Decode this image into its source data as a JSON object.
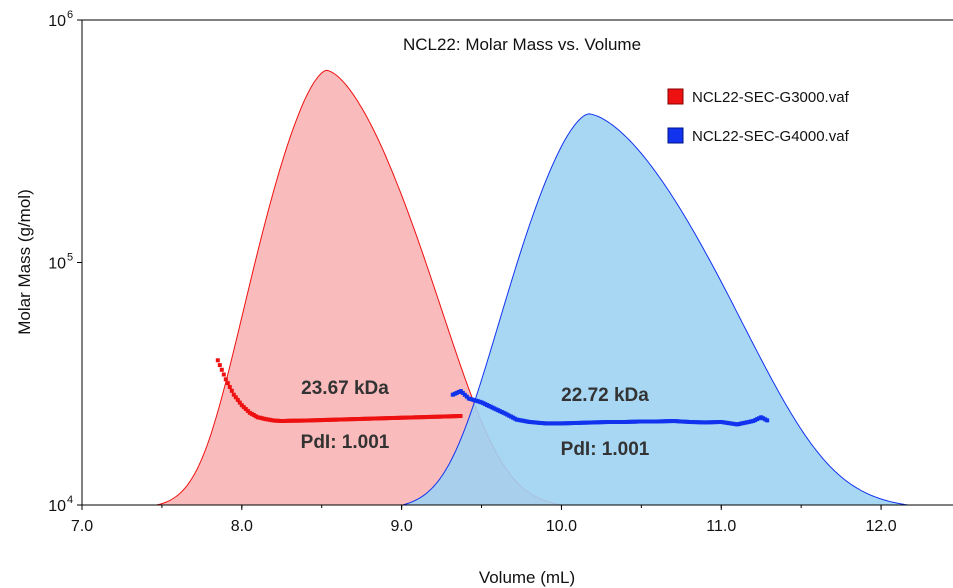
{
  "chart_data": {
    "type": "area",
    "title": "NCL22: Molar Mass vs. Volume",
    "xlabel": "Volume (mL)",
    "ylabel": "Molar Mass (g/mol)",
    "xlim": [
      7.0,
      12.45
    ],
    "ylim": [
      10000,
      1000000
    ],
    "yscale": "log",
    "x_ticks": [
      "7.0",
      "8.0",
      "9.0",
      "10.0",
      "11.0",
      "12.0"
    ],
    "y_ticks": [
      {
        "base": "10",
        "exp": "4"
      },
      {
        "base": "10",
        "exp": "5"
      },
      {
        "base": "10",
        "exp": "6"
      }
    ],
    "legend_position": "top-right",
    "series": [
      {
        "name": "NCL22-SEC-G3000.vaf",
        "color": "#ee1111",
        "fill": "#f9b7b7",
        "peak": {
          "center": 8.53,
          "left_width": 0.36,
          "right_width": 0.5,
          "height": 620000,
          "baseline": 9700
        },
        "mass_points": {
          "x": [
            7.85,
            7.9,
            7.95,
            8.0,
            8.05,
            8.1,
            8.15,
            8.2,
            8.25,
            8.3,
            8.4,
            8.5,
            8.6,
            8.7,
            8.8,
            8.9,
            9.0,
            9.1,
            9.2,
            9.3,
            9.38
          ],
          "y": [
            39500,
            33000,
            28500,
            25800,
            24000,
            23000,
            22600,
            22300,
            22200,
            22250,
            22300,
            22400,
            22500,
            22600,
            22700,
            22800,
            22900,
            23000,
            23100,
            23200,
            23300
          ]
        },
        "annotation": {
          "mass": "23.67 kDa",
          "pdi": "PdI: 1.001"
        }
      },
      {
        "name": "NCL22-SEC-G4000.vaf",
        "color": "#1133ee",
        "fill": "#9fd3f3",
        "peak": {
          "center": 10.17,
          "left_width": 0.42,
          "right_width": 0.72,
          "height": 410000,
          "baseline": 9600
        },
        "mass_points": {
          "x": [
            9.32,
            9.37,
            9.42,
            9.5,
            9.58,
            9.65,
            9.72,
            9.8,
            9.9,
            10.0,
            10.1,
            10.2,
            10.3,
            10.4,
            10.5,
            10.6,
            10.7,
            10.8,
            10.9,
            11.0,
            11.1,
            11.2,
            11.25,
            11.3
          ],
          "y": [
            28500,
            29500,
            27500,
            26500,
            25000,
            23800,
            22500,
            22000,
            21700,
            21700,
            21800,
            21900,
            22000,
            22000,
            22100,
            22100,
            22200,
            22000,
            21900,
            22000,
            21500,
            22200,
            23000,
            22100
          ]
        },
        "annotation": {
          "mass": "22.72 kDa",
          "pdi": "PdI: 1.001"
        }
      }
    ]
  },
  "colors": {
    "axis": "#000000",
    "background": "#ffffff"
  }
}
